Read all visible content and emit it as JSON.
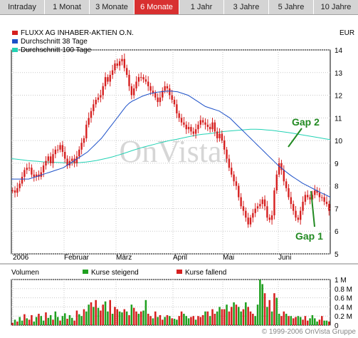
{
  "tabs": [
    {
      "label": "Intraday",
      "active": false
    },
    {
      "label": "1 Monat",
      "active": false
    },
    {
      "label": "3 Monate",
      "active": false
    },
    {
      "label": "6 Monate",
      "active": true
    },
    {
      "label": "1 Jahr",
      "active": false
    },
    {
      "label": "3 Jahre",
      "active": false
    },
    {
      "label": "5 Jahre",
      "active": false
    },
    {
      "label": "10 Jahre",
      "active": false
    }
  ],
  "colors": {
    "price": "#d62020",
    "ma38": "#1c50c8",
    "ma100": "#22d2b4",
    "rising": "#20a020",
    "falling": "#d62020",
    "active_tab": "#d83030",
    "annotation": "#228a22"
  },
  "chart_data": [
    {
      "type": "candlestick",
      "currency": "EUR",
      "legend": [
        "FLUXX AG INHABER-AKTIEN O.N.",
        "Durchschnitt 38 Tage",
        "Durchschnitt 100 Tage"
      ],
      "legend_position": "top-left",
      "watermark": "OnVista.",
      "grid": true,
      "ylim": [
        5,
        14
      ],
      "yticks": [
        "5",
        "6",
        "7",
        "8",
        "9",
        "10",
        "11",
        "12",
        "13",
        "14"
      ],
      "xlabels": [
        "2006",
        "Februar",
        "März",
        "April",
        "Mai",
        "Juni"
      ],
      "annotations": [
        "Gap 2",
        "Gap 1"
      ],
      "price": [
        7.8,
        7.7,
        7.9,
        8.1,
        8.4,
        8.7,
        8.8,
        8.8,
        8.5,
        8.4,
        8.5,
        8.4,
        8.6,
        8.9,
        9.1,
        9.3,
        9.0,
        9.4,
        9.6,
        9.6,
        9.8,
        9.5,
        9.2,
        8.9,
        9.1,
        9.2,
        9.0,
        9.3,
        9.6,
        9.9,
        10.1,
        10.7,
        11.0,
        11.3,
        11.6,
        11.8,
        11.9,
        12.0,
        12.4,
        12.8,
        12.6,
        12.9,
        13.1,
        13.4,
        13.3,
        13.5,
        13.6,
        13.2,
        12.9,
        12.4,
        12.0,
        12.3,
        12.6,
        12.8,
        12.8,
        12.7,
        12.6,
        12.4,
        12.2,
        12.1,
        11.9,
        11.7,
        11.9,
        12.2,
        12.4,
        12.3,
        12.0,
        11.8,
        11.6,
        11.2,
        11.0,
        10.8,
        10.7,
        10.5,
        10.6,
        10.4,
        10.3,
        10.5,
        10.7,
        10.9,
        10.8,
        10.7,
        10.6,
        10.5,
        10.8,
        10.4,
        10.1,
        10.3,
        10.0,
        9.6,
        9.2,
        8.8,
        8.5,
        8.2,
        8.0,
        7.5,
        7.1,
        6.9,
        6.6,
        6.3,
        6.6,
        6.8,
        7.0,
        7.1,
        7.2,
        7.4,
        7.1,
        6.6,
        6.5,
        6.7,
        7.8,
        8.5,
        9.0,
        8.7,
        8.2,
        7.9,
        7.5,
        7.2,
        6.9,
        6.6,
        6.5,
        6.9,
        7.3,
        7.6,
        7.5,
        7.4,
        7.6,
        7.8,
        7.7,
        7.5,
        7.5,
        7.3,
        7.2,
        6.9
      ],
      "ma38": [
        8.3,
        8.3,
        8.3,
        8.3,
        8.3,
        8.3,
        8.35,
        8.4,
        8.45,
        8.5,
        8.55,
        8.6,
        8.65,
        8.7,
        8.75,
        8.8,
        8.9,
        9.0,
        9.1,
        9.2,
        9.3,
        9.4,
        9.5,
        9.65,
        9.8,
        9.95,
        10.1,
        10.3,
        10.5,
        10.7,
        10.9,
        11.1,
        11.3,
        11.5,
        11.65,
        11.75,
        11.82,
        11.9,
        11.97,
        12.02,
        12.07,
        12.1,
        12.13,
        12.15,
        12.17,
        12.18,
        12.18,
        12.17,
        12.15,
        12.1,
        12.05,
        12.0,
        11.9,
        11.8,
        11.7,
        11.6,
        11.5,
        11.45,
        11.4,
        11.35,
        11.3,
        11.2,
        11.1,
        11.0,
        10.85,
        10.7,
        10.55,
        10.4,
        10.25,
        10.1,
        9.95,
        9.8,
        9.65,
        9.5,
        9.35,
        9.2,
        9.05,
        8.9,
        8.78,
        8.65,
        8.53,
        8.42,
        8.32,
        8.22,
        8.12,
        8.04,
        7.96,
        7.88,
        7.8,
        7.72,
        7.65,
        7.58,
        7.5
      ],
      "ma100": [
        9.2,
        9.18,
        9.15,
        9.12,
        9.1,
        9.08,
        9.06,
        9.05,
        9.04,
        9.03,
        9.02,
        9.02,
        9.02,
        9.03,
        9.05,
        9.08,
        9.12,
        9.17,
        9.22,
        9.28,
        9.35,
        9.42,
        9.5,
        9.58,
        9.65,
        9.72,
        9.78,
        9.84,
        9.9,
        9.96,
        10.01,
        10.05,
        10.1,
        10.15,
        10.2,
        10.25,
        10.28,
        10.3,
        10.33,
        10.37,
        10.4,
        10.42,
        10.44,
        10.46,
        10.48,
        10.5,
        10.5,
        10.49,
        10.47,
        10.45,
        10.42,
        10.39,
        10.36,
        10.32,
        10.28,
        10.24,
        10.2,
        10.16,
        10.12,
        10.08,
        10.04
      ],
      "volume": {
        "legend": [
          "Volumen",
          "Kurse steigend",
          "Kurse fallend"
        ],
        "ylim": [
          0,
          1.0
        ],
        "yticks": [
          "0",
          "0.2 M",
          "0.4 M",
          "0.6 M",
          "0.8 M",
          "1 M"
        ],
        "values": [
          0.05,
          0.12,
          0.08,
          0.18,
          0.1,
          0.24,
          0.15,
          0.12,
          0.22,
          0.08,
          0.18,
          0.25,
          0.2,
          0.1,
          0.28,
          0.16,
          0.22,
          0.12,
          0.3,
          0.18,
          0.1,
          0.2,
          0.26,
          0.14,
          0.22,
          0.16,
          0.1,
          0.32,
          0.24,
          0.2,
          0.35,
          0.3,
          0.45,
          0.5,
          0.4,
          0.55,
          0.38,
          0.32,
          0.45,
          0.52,
          0.3,
          0.55,
          0.25,
          0.4,
          0.35,
          0.3,
          0.28,
          0.35,
          0.3,
          0.22,
          0.45,
          0.38,
          0.3,
          0.25,
          0.3,
          0.32,
          0.55,
          0.25,
          0.2,
          0.15,
          0.3,
          0.18,
          0.22,
          0.12,
          0.18,
          0.22,
          0.2,
          0.15,
          0.14,
          0.12,
          0.2,
          0.3,
          0.25,
          0.2,
          0.15,
          0.18,
          0.2,
          0.12,
          0.2,
          0.18,
          0.22,
          0.3,
          0.3,
          0.2,
          0.35,
          0.25,
          0.3,
          0.4,
          0.35,
          0.35,
          0.45,
          0.3,
          0.4,
          0.5,
          0.45,
          0.4,
          0.3,
          0.35,
          0.5,
          0.4,
          0.3,
          0.25,
          0.2,
          0.45,
          1.0,
          0.9,
          0.7,
          0.4,
          0.55,
          0.3,
          0.7,
          0.6,
          0.25,
          0.2,
          0.3,
          0.25,
          0.2,
          0.2,
          0.15,
          0.18,
          0.2,
          0.18,
          0.12,
          0.2,
          0.1,
          0.15,
          0.22,
          0.15,
          0.08,
          0.12,
          0.2,
          0.1,
          0.1,
          0.08
        ],
        "direction": [
          0,
          1,
          0,
          1,
          1,
          0,
          1,
          0,
          0,
          1,
          1,
          0,
          1,
          1,
          0,
          1,
          1,
          0,
          1,
          1,
          0,
          1,
          1,
          0,
          1,
          1,
          0,
          0,
          1,
          1,
          0,
          1,
          1,
          0,
          1,
          0,
          1,
          0,
          0,
          1,
          1,
          0,
          1,
          0,
          0,
          1,
          1,
          0,
          1,
          0,
          1,
          0,
          0,
          1,
          0,
          1,
          1,
          0,
          0,
          1,
          0,
          1,
          0,
          0,
          1,
          0,
          1,
          0,
          1,
          1,
          0,
          0,
          1,
          1,
          1,
          0,
          0,
          1,
          0,
          0,
          0,
          1,
          0,
          1,
          0,
          0,
          1,
          1,
          0,
          0,
          1,
          0,
          0,
          1,
          0,
          1,
          1,
          0,
          1,
          0,
          0,
          0,
          1,
          1,
          1,
          1,
          0,
          1,
          0,
          1,
          0,
          1,
          1,
          0,
          0,
          1,
          0,
          1,
          0,
          0,
          1,
          1,
          0,
          0,
          0,
          1,
          1,
          1,
          1,
          0,
          0,
          1,
          1,
          0,
          1,
          0
        ]
      }
    }
  ],
  "footer": "© 1999-2006 OnVista Gruppe"
}
